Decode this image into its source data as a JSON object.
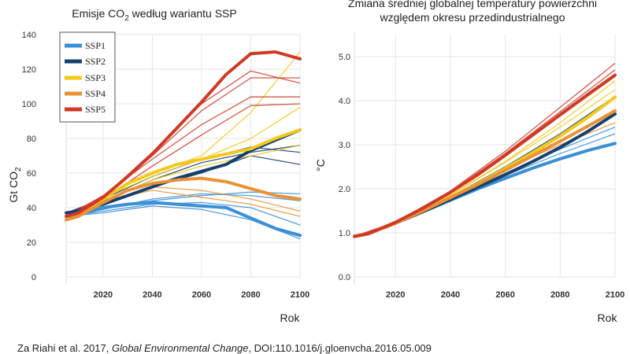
{
  "colors": {
    "SSP1": "#3a8fd6",
    "SSP2": "#17406d",
    "SSP3": "#f2c91b",
    "SSP4": "#ea9235",
    "SSP5": "#cf3a26"
  },
  "chart_data": [
    {
      "type": "line",
      "title_main": "Emisje CO",
      "title_sub": "2",
      "title_rest": " według wariantu SSP",
      "ylabel_main": "Gt CO",
      "ylabel_sub": "2",
      "xlabel": "Rok",
      "xlim": [
        2005,
        2100
      ],
      "ylim": [
        0,
        140
      ],
      "xticks": [
        2020,
        2040,
        2060,
        2080,
        2100
      ],
      "yticks": [
        0,
        20,
        40,
        60,
        80,
        100,
        120,
        140
      ],
      "legend": {
        "position": "top-left",
        "entries": [
          "SSP1",
          "SSP2",
          "SSP3",
          "SSP4",
          "SSP5"
        ]
      },
      "series": [
        {
          "name": "SSP1",
          "x": [
            2005,
            2010,
            2020,
            2030,
            2040,
            2050,
            2060,
            2070,
            2080,
            2090,
            2100
          ],
          "values": [
            35,
            36,
            40,
            42,
            43,
            42,
            41,
            40,
            34,
            28,
            24
          ]
        },
        {
          "name": "SSP2",
          "x": [
            2005,
            2010,
            2020,
            2030,
            2040,
            2050,
            2060,
            2070,
            2080,
            2090,
            2100
          ],
          "values": [
            37,
            38,
            42,
            47,
            52,
            57,
            61,
            65,
            73,
            79,
            85
          ]
        },
        {
          "name": "SSP3",
          "x": [
            2005,
            2010,
            2020,
            2030,
            2040,
            2050,
            2060,
            2070,
            2080,
            2090,
            2100
          ],
          "values": [
            33,
            35,
            45,
            54,
            60,
            65,
            68,
            71,
            74,
            80,
            85
          ]
        },
        {
          "name": "SSP4",
          "x": [
            2005,
            2010,
            2020,
            2030,
            2040,
            2050,
            2060,
            2070,
            2080,
            2090,
            2100
          ],
          "values": [
            33,
            35,
            43,
            50,
            54,
            56,
            57,
            55,
            51,
            47,
            45
          ]
        },
        {
          "name": "SSP5",
          "x": [
            2005,
            2010,
            2020,
            2030,
            2040,
            2050,
            2060,
            2070,
            2080,
            2090,
            2100
          ],
          "values": [
            35,
            37,
            46,
            58,
            71,
            86,
            101,
            117,
            129,
            130,
            126
          ]
        }
      ],
      "thin_series": [
        {
          "group": "SSP1",
          "x": [
            2005,
            2020,
            2040,
            2060,
            2080,
            2100
          ],
          "values": [
            35,
            39,
            45,
            48,
            47,
            44
          ]
        },
        {
          "group": "SSP1",
          "x": [
            2005,
            2020,
            2040,
            2060,
            2080,
            2100
          ],
          "values": [
            35,
            37,
            41,
            39,
            33,
            22
          ]
        },
        {
          "group": "SSP1",
          "x": [
            2005,
            2020,
            2040,
            2060,
            2080,
            2100
          ],
          "values": [
            35,
            40,
            44,
            47,
            49,
            48
          ]
        },
        {
          "group": "SSP1",
          "x": [
            2005,
            2020,
            2040,
            2060,
            2080,
            2100
          ],
          "values": [
            35,
            38,
            42,
            43,
            40,
            30
          ]
        },
        {
          "group": "SSP2",
          "x": [
            2005,
            2020,
            2040,
            2060,
            2080,
            2100
          ],
          "values": [
            37,
            44,
            56,
            66,
            72,
            76
          ]
        },
        {
          "group": "SSP2",
          "x": [
            2005,
            2020,
            2040,
            2060,
            2080,
            2100
          ],
          "values": [
            37,
            43,
            52,
            60,
            70,
            65
          ]
        },
        {
          "group": "SSP2",
          "x": [
            2005,
            2020,
            2040,
            2060,
            2080,
            2100
          ],
          "values": [
            37,
            45,
            58,
            68,
            75,
            72
          ]
        },
        {
          "group": "SSP3",
          "x": [
            2005,
            2020,
            2040,
            2060,
            2080,
            2100
          ],
          "values": [
            33,
            46,
            58,
            68,
            80,
            98
          ]
        },
        {
          "group": "SSP3",
          "x": [
            2005,
            2020,
            2040,
            2060,
            2080,
            2100
          ],
          "values": [
            33,
            47,
            60,
            70,
            95,
            130
          ]
        },
        {
          "group": "SSP3",
          "x": [
            2005,
            2020,
            2040,
            2060,
            2080,
            2100
          ],
          "values": [
            33,
            44,
            56,
            64,
            70,
            76
          ]
        },
        {
          "group": "SSP4",
          "x": [
            2005,
            2020,
            2040,
            2060,
            2080,
            2100
          ],
          "values": [
            33,
            44,
            50,
            46,
            42,
            35
          ]
        },
        {
          "group": "SSP4",
          "x": [
            2005,
            2020,
            2040,
            2060,
            2080,
            2100
          ],
          "values": [
            33,
            42,
            52,
            50,
            45,
            38
          ]
        },
        {
          "group": "SSP5",
          "x": [
            2005,
            2020,
            2040,
            2060,
            2080,
            2100
          ],
          "values": [
            35,
            46,
            70,
            96,
            115,
            115
          ]
        },
        {
          "group": "SSP5",
          "x": [
            2005,
            2020,
            2040,
            2060,
            2080,
            2100
          ],
          "values": [
            35,
            47,
            68,
            88,
            104,
            104
          ]
        },
        {
          "group": "SSP5",
          "x": [
            2005,
            2020,
            2040,
            2060,
            2080,
            2100
          ],
          "values": [
            35,
            45,
            64,
            82,
            99,
            100
          ]
        },
        {
          "group": "SSP5",
          "x": [
            2005,
            2020,
            2040,
            2060,
            2080,
            2100
          ],
          "values": [
            35,
            46,
            72,
            100,
            119,
            112
          ]
        }
      ]
    },
    {
      "type": "line",
      "title_line1": "Zmiana średniej globalnej temperatury powierzchni",
      "title_line2": "względem okresu przedindustrialnego",
      "ylabel": "°C",
      "xlabel": "Rok",
      "xlim": [
        2005,
        2100
      ],
      "ylim": [
        0,
        5.5
      ],
      "xticks": [
        2020,
        2040,
        2060,
        2080,
        2100
      ],
      "yticks": [
        0.0,
        1.0,
        2.0,
        3.0,
        4.0,
        5.0
      ],
      "ytick_labels": [
        "0.0",
        "1.0",
        "2.0",
        "3.0",
        "4.0",
        "5.0"
      ],
      "series": [
        {
          "name": "SSP1",
          "x": [
            2005,
            2010,
            2020,
            2030,
            2040,
            2050,
            2060,
            2070,
            2080,
            2090,
            2100
          ],
          "values": [
            0.92,
            0.98,
            1.22,
            1.48,
            1.74,
            2.0,
            2.24,
            2.47,
            2.68,
            2.87,
            3.03
          ]
        },
        {
          "name": "SSP2",
          "x": [
            2005,
            2010,
            2020,
            2030,
            2040,
            2050,
            2060,
            2070,
            2080,
            2090,
            2100
          ],
          "values": [
            0.92,
            0.98,
            1.22,
            1.48,
            1.76,
            2.04,
            2.32,
            2.62,
            2.94,
            3.3,
            3.7
          ]
        },
        {
          "name": "SSP3",
          "x": [
            2005,
            2010,
            2020,
            2030,
            2040,
            2050,
            2060,
            2070,
            2080,
            2090,
            2100
          ],
          "values": [
            0.92,
            0.98,
            1.22,
            1.5,
            1.8,
            2.12,
            2.46,
            2.82,
            3.2,
            3.62,
            4.08
          ]
        },
        {
          "name": "SSP4",
          "x": [
            2005,
            2010,
            2020,
            2030,
            2040,
            2050,
            2060,
            2070,
            2080,
            2090,
            2100
          ],
          "values": [
            0.92,
            0.98,
            1.22,
            1.5,
            1.8,
            2.1,
            2.42,
            2.75,
            3.08,
            3.42,
            3.77
          ]
        },
        {
          "name": "SSP5",
          "x": [
            2005,
            2010,
            2020,
            2030,
            2040,
            2050,
            2060,
            2070,
            2080,
            2090,
            2100
          ],
          "values": [
            0.92,
            0.98,
            1.24,
            1.56,
            1.92,
            2.32,
            2.76,
            3.22,
            3.68,
            4.14,
            4.58
          ]
        }
      ],
      "thin_series": [
        {
          "group": "SSP1",
          "x": [
            2005,
            2020,
            2040,
            2060,
            2080,
            2100
          ],
          "values": [
            0.92,
            1.22,
            1.75,
            2.3,
            2.8,
            3.25
          ]
        },
        {
          "group": "SSP1",
          "x": [
            2005,
            2020,
            2040,
            2060,
            2080,
            2100
          ],
          "values": [
            0.92,
            1.22,
            1.77,
            2.35,
            2.9,
            3.4
          ]
        },
        {
          "group": "SSP2",
          "x": [
            2005,
            2020,
            2040,
            2060,
            2080,
            2100
          ],
          "values": [
            0.92,
            1.22,
            1.8,
            2.45,
            3.1,
            3.75
          ]
        },
        {
          "group": "SSP2",
          "x": [
            2005,
            2020,
            2040,
            2060,
            2080,
            2100
          ],
          "values": [
            0.92,
            1.22,
            1.82,
            2.5,
            3.25,
            4.1
          ]
        },
        {
          "group": "SSP3",
          "x": [
            2005,
            2020,
            2040,
            2060,
            2080,
            2100
          ],
          "values": [
            0.92,
            1.22,
            1.85,
            2.6,
            3.4,
            4.25
          ]
        },
        {
          "group": "SSP3",
          "x": [
            2005,
            2020,
            2040,
            2060,
            2080,
            2100
          ],
          "values": [
            0.92,
            1.22,
            1.86,
            2.62,
            3.5,
            4.45
          ]
        },
        {
          "group": "SSP4",
          "x": [
            2005,
            2020,
            2040,
            2060,
            2080,
            2100
          ],
          "values": [
            0.92,
            1.22,
            1.8,
            2.45,
            3.0,
            3.5
          ]
        },
        {
          "group": "SSP5",
          "x": [
            2005,
            2020,
            2040,
            2060,
            2080,
            2100
          ],
          "values": [
            0.92,
            1.24,
            1.95,
            2.85,
            3.85,
            4.85
          ]
        },
        {
          "group": "SSP5",
          "x": [
            2005,
            2020,
            2040,
            2060,
            2080,
            2100
          ],
          "values": [
            0.92,
            1.24,
            1.93,
            2.8,
            3.75,
            4.7
          ]
        },
        {
          "group": "SSP5",
          "x": [
            2005,
            2020,
            2040,
            2060,
            2080,
            2100
          ],
          "values": [
            0.92,
            1.24,
            1.9,
            2.75,
            3.65,
            4.55
          ]
        }
      ]
    }
  ],
  "source": {
    "prefix": "Za Riahi et al. 2017, ",
    "journal": "Global Environmental Change",
    "suffix": ", DOI:110.1016/j.gloenvcha.2016.05.009"
  }
}
